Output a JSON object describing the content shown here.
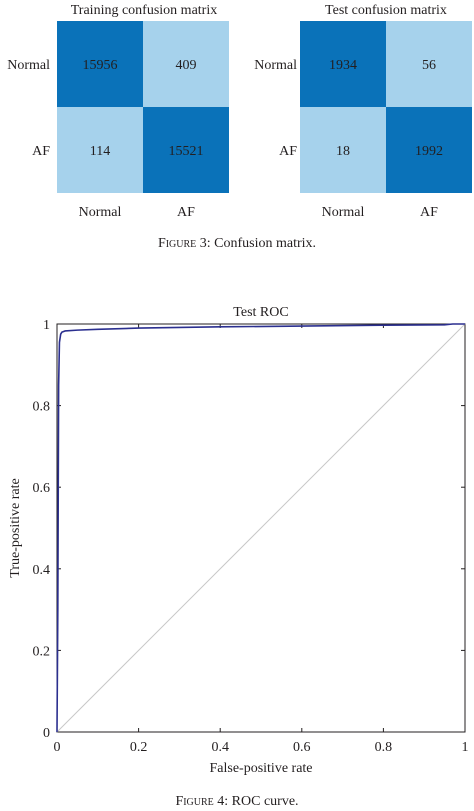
{
  "figure3": {
    "caption_label": "Figure 3",
    "caption_text": ": Confusion matrix.",
    "colors": {
      "high": "#0a72b9",
      "low": "#a6d2ec"
    },
    "chart_data": [
      {
        "type": "heatmap",
        "title": "Training confusion matrix",
        "rows": [
          "Normal",
          "AF"
        ],
        "cols": [
          "Normal",
          "AF"
        ],
        "values": [
          [
            15956,
            409
          ],
          [
            114,
            15521
          ]
        ]
      },
      {
        "type": "heatmap",
        "title": "Test confusion matrix",
        "rows": [
          "Normal",
          "AF"
        ],
        "cols": [
          "Normal",
          "AF"
        ],
        "values": [
          [
            1934,
            56
          ],
          [
            18,
            1992
          ]
        ]
      }
    ]
  },
  "figure4": {
    "caption_label": "Figure 4",
    "caption_text": ": ROC curve.",
    "colors": {
      "curve": "#2b2f8f",
      "diagonal": "#c8c8c8"
    },
    "chart_data": {
      "type": "line",
      "title": "Test ROC",
      "xlabel": "False-positive rate",
      "ylabel": "True-positive rate",
      "xlim": [
        0,
        1
      ],
      "ylim": [
        0,
        1
      ],
      "xticks": [
        "0",
        "0.2",
        "0.4",
        "0.6",
        "0.8",
        "1"
      ],
      "yticks": [
        "0",
        "0.2",
        "0.4",
        "0.6",
        "0.8",
        "1"
      ],
      "grid": false,
      "series": [
        {
          "x": [
            0,
            0.002,
            0.004,
            0.006,
            0.009,
            0.012,
            0.02,
            0.05,
            0.1,
            0.2,
            0.4,
            0.6,
            0.8,
            0.95,
            0.97,
            1
          ],
          "y": [
            0,
            0.3,
            0.85,
            0.955,
            0.975,
            0.98,
            0.983,
            0.985,
            0.987,
            0.99,
            0.993,
            0.995,
            0.997,
            0.998,
            1.0,
            1.0
          ]
        },
        {
          "x": [
            0,
            1
          ],
          "y": [
            0,
            1
          ]
        }
      ]
    }
  }
}
